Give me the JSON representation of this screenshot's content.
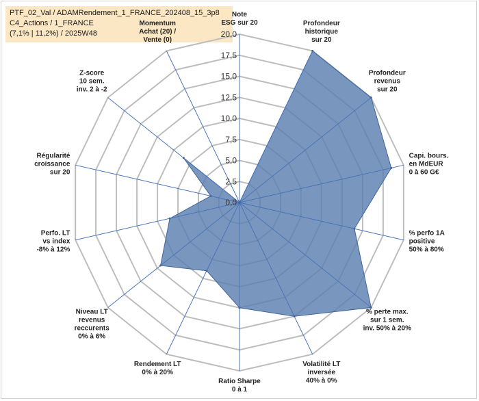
{
  "header": {
    "line1": "PTF_02_Val / ADAMRendement_1_FRANCE_202408_15_3p8",
    "line2": "C4_Actions / 1_FRANCE",
    "line3": "(7,1% | 11,2%) / 2025W48"
  },
  "chart_data": {
    "type": "radar",
    "title": "",
    "rmin": 0,
    "rmax": 20,
    "ticks": [
      "0,0",
      "2,5",
      "5,0",
      "7,5",
      "10,0",
      "12,5",
      "15,0",
      "17,5",
      "20,0"
    ],
    "axes": [
      {
        "label": [
          "Note",
          "ESG sur 20"
        ],
        "value": 0
      },
      {
        "label": [
          "Profondeur",
          "historique",
          "sur 20"
        ],
        "value": 20
      },
      {
        "label": [
          "Profondeur",
          "revenus",
          "sur 20"
        ],
        "value": 20
      },
      {
        "label": [
          "Capi. bours.",
          "en MdEUR",
          "0 à 60 G€"
        ],
        "value": 18.5
      },
      {
        "label": [
          "% perfo 1A",
          "positive",
          "50% à 80%"
        ],
        "value": 14.0
      },
      {
        "label": [
          "% perte max.",
          "sur 1 sem.",
          "inv. 50% à 20%"
        ],
        "value": 20
      },
      {
        "label": [
          "Volatilité LT",
          "inversée",
          "40% à 0%"
        ],
        "value": 15.0
      },
      {
        "label": [
          "Ratio Sharpe",
          "0 à 1"
        ],
        "value": 12.5
      },
      {
        "label": [
          "Rendement LT",
          "0% à 20%"
        ],
        "value": 9.0
      },
      {
        "label": [
          "Niveau LT",
          "revenus",
          "reccurents",
          "0% à 6%"
        ],
        "value": 12.0
      },
      {
        "label": [
          "Perfo. LT",
          "vs index",
          "-8% à 12%"
        ],
        "value": 8.5
      },
      {
        "label": [
          "Régularité",
          "croissance",
          "sur 20"
        ],
        "value": 3.5
      },
      {
        "label": [
          "Z-score",
          "10 sem.",
          "inv. 2 à -2"
        ],
        "value": 8.5
      },
      {
        "label": [
          "Momentum",
          "Achat (20) /",
          "Vente (0)"
        ],
        "value": 0
      }
    ],
    "colors": {
      "fill": "#5b7fb0",
      "stroke": "#3f6599",
      "grid": "#bdbdbd",
      "spoke": "#4a74b8"
    }
  }
}
